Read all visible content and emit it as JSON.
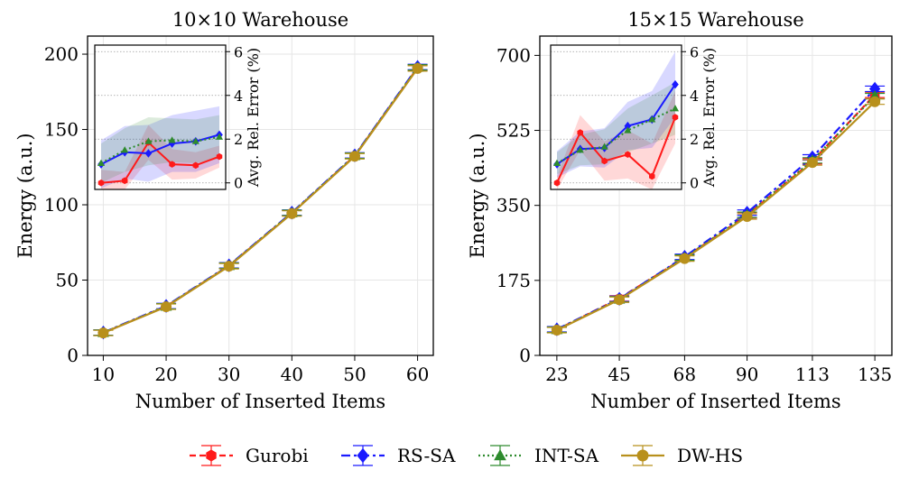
{
  "series_meta": [
    {
      "name": "Gurobi",
      "color": "#ff1a1a",
      "dash": "7,4",
      "marker": "hexagon"
    },
    {
      "name": "RS-SA",
      "color": "#1a1aff",
      "dash": "10,4,3,4",
      "marker": "diamond"
    },
    {
      "name": "INT-SA",
      "color": "#2e8b2e",
      "dash": "2,3",
      "marker": "triangle"
    },
    {
      "name": "DW-HS",
      "color": "#b8901c",
      "dash": "",
      "marker": "circle"
    }
  ],
  "chart_data": [
    {
      "type": "line",
      "title": "10×10 Warehouse",
      "xlabel": "Number of Inserted Items",
      "ylabel": "Energy (a.u.)",
      "x": [
        10,
        20,
        30,
        40,
        50,
        60
      ],
      "xticks": [
        "10",
        "20",
        "30",
        "40",
        "50",
        "60"
      ],
      "xlim": [
        7.5,
        62.5
      ],
      "ylim": [
        0,
        212
      ],
      "yticks": [
        0,
        50,
        100,
        150,
        200
      ],
      "ytick_labels": [
        "0",
        "50",
        "100",
        "150",
        "200"
      ],
      "series": [
        {
          "name": "Gurobi",
          "values": [
            15,
            32.5,
            59.5,
            94.5,
            132.5,
            191
          ]
        },
        {
          "name": "RS-SA",
          "values": [
            15.2,
            32.8,
            59.8,
            94.8,
            132.8,
            191.5
          ]
        },
        {
          "name": "INT-SA",
          "values": [
            15.1,
            32.6,
            59.6,
            94.6,
            132.6,
            191.2
          ]
        },
        {
          "name": "DW-HS",
          "values": [
            14.9,
            32.3,
            59.2,
            94.2,
            132.2,
            190.5
          ]
        }
      ],
      "inset": {
        "ylabel": "Avg. Rel. Error (%)",
        "ylim": [
          -0.3,
          6.3
        ],
        "yticks": [
          0,
          2,
          4,
          6
        ],
        "ytick_labels": [
          "0",
          "2",
          "4",
          "6"
        ],
        "x": [
          10,
          20,
          30,
          40,
          50,
          60
        ],
        "series": [
          {
            "name": "Gurobi",
            "values": [
              0.0,
              0.1,
              1.85,
              0.85,
              0.8,
              1.2
            ],
            "band": [
              0.6,
              0.4,
              0.8,
              0.7,
              0.6,
              0.5
            ]
          },
          {
            "name": "RS-SA",
            "values": [
              0.85,
              1.4,
              1.35,
              1.8,
              1.9,
              2.2
            ],
            "band": [
              1.1,
              1.2,
              1.3,
              1.3,
              1.4,
              1.3
            ]
          },
          {
            "name": "INT-SA",
            "values": [
              0.9,
              1.5,
              1.9,
              1.95,
              1.9,
              2.1
            ],
            "band": [
              0.9,
              1.0,
              1.1,
              1.0,
              1.0,
              1.0
            ]
          }
        ]
      }
    },
    {
      "type": "line",
      "title": "15×15 Warehouse",
      "xlabel": "Number of Inserted Items",
      "ylabel": "Energy (a.u.)",
      "x": [
        23,
        45,
        68,
        90,
        113,
        135
      ],
      "xticks": [
        "23",
        "45",
        "68",
        "90",
        "113",
        "135"
      ],
      "xlim": [
        17,
        141
      ],
      "ylim": [
        0,
        745
      ],
      "yticks": [
        0,
        175,
        350,
        525,
        700
      ],
      "ytick_labels": [
        "0",
        "175",
        "350",
        "525",
        "700"
      ],
      "series": [
        {
          "name": "Gurobi",
          "values": [
            60,
            133,
            228,
            327,
            453,
            608
          ]
        },
        {
          "name": "RS-SA",
          "values": [
            61,
            132,
            230,
            333,
            462,
            622
          ]
        },
        {
          "name": "INT-SA",
          "values": [
            60,
            131,
            228,
            328,
            455,
            605
          ]
        },
        {
          "name": "DW-HS",
          "values": [
            59,
            130,
            226,
            324,
            450,
            592
          ]
        }
      ],
      "inset": {
        "ylabel": "Avg. Rel. Error (%)",
        "ylim": [
          -0.3,
          6.3
        ],
        "yticks": [
          0,
          2,
          4,
          6
        ],
        "ytick_labels": [
          "0",
          "2",
          "4",
          "6"
        ],
        "x": [
          23,
          45,
          68,
          90,
          113,
          135
        ],
        "series": [
          {
            "name": "Gurobi",
            "values": [
              0.0,
              2.3,
              1.0,
              1.3,
              0.3,
              3.0
            ],
            "band": [
              0.3,
              0.8,
              0.9,
              1.1,
              1.5,
              1.2
            ]
          },
          {
            "name": "RS-SA",
            "values": [
              0.85,
              1.55,
              1.6,
              2.6,
              2.9,
              4.5
            ],
            "band": [
              0.6,
              0.8,
              0.9,
              1.1,
              1.3,
              1.5
            ]
          },
          {
            "name": "INT-SA",
            "values": [
              0.9,
              1.5,
              1.65,
              2.4,
              2.9,
              3.4
            ],
            "band": [
              0.5,
              0.7,
              0.8,
              1.0,
              1.1,
              1.2
            ]
          }
        ]
      }
    }
  ]
}
